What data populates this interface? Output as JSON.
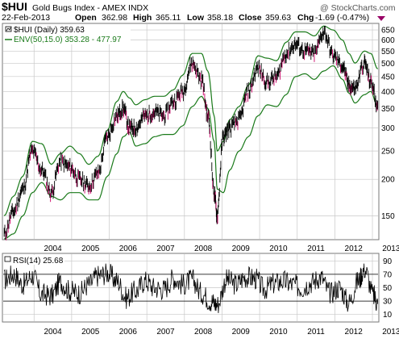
{
  "header": {
    "symbol": "$HUI",
    "name": "Gold Bugs Index - AMEX  INDX",
    "date": "22-Feb-2013",
    "open_label": "Open",
    "open": "362.98",
    "high_label": "High",
    "high": "365.11",
    "low_label": "Low",
    "low": "358.18",
    "close_label": "Close",
    "close": "359.63",
    "chg_label": "Chg",
    "chg": "-1.69 (-0.47%)",
    "brand": "@ StockCharts.com"
  },
  "colors": {
    "price": "#000000",
    "down_close": "#cc0066",
    "envelope": "#1a7a1a",
    "grid": "#c8c8c8",
    "marker": "#990066"
  },
  "icons": {
    "legend_symbol": "chart-icon",
    "chg_arrow": "down-triangle-icon"
  },
  "legend": {
    "price": "$HUI (Daily) 359.63",
    "envelope": "ENV(50,15.0) 353.28 - 477.97"
  },
  "rsi_label": "RSI(14) 25.68",
  "chart_data": [
    {
      "type": "line",
      "title": "$HUI Gold Bugs Index - AMEX INDX",
      "scale": "log",
      "ylim": [
        125,
        680
      ],
      "grid": true,
      "y_ticks": [
        "150",
        "200",
        "250",
        "300",
        "350",
        "400",
        "450",
        "500",
        "550",
        "600",
        "650"
      ],
      "x_ticks": [
        "2004",
        "2005",
        "2006",
        "2007",
        "2008",
        "2009",
        "2010",
        "2011",
        "2012",
        "2013"
      ],
      "x_range": [
        "2003-03",
        "2013-02-22"
      ],
      "series": [
        {
          "name": "$HUI (Daily)",
          "x": [
            "2003-03",
            "2003-06",
            "2003-09",
            "2003-12",
            "2004-03",
            "2004-06",
            "2004-09",
            "2004-12",
            "2005-03",
            "2005-06",
            "2005-09",
            "2005-12",
            "2006-03",
            "2006-05",
            "2006-07",
            "2006-09",
            "2006-12",
            "2007-03",
            "2007-06",
            "2007-09",
            "2007-12",
            "2008-03",
            "2008-06",
            "2008-08",
            "2008-10",
            "2008-11",
            "2009-01",
            "2009-03",
            "2009-06",
            "2009-09",
            "2009-12",
            "2010-03",
            "2010-06",
            "2010-09",
            "2010-12",
            "2011-03",
            "2011-06",
            "2011-09",
            "2011-12",
            "2012-03",
            "2012-05",
            "2012-07",
            "2012-10",
            "2012-12",
            "2013-02-22"
          ],
          "values": [
            130,
            155,
            185,
            250,
            215,
            180,
            230,
            220,
            200,
            190,
            210,
            280,
            330,
            350,
            300,
            300,
            330,
            340,
            330,
            370,
            400,
            500,
            440,
            330,
            180,
            150,
            280,
            300,
            320,
            400,
            480,
            430,
            450,
            540,
            580,
            550,
            540,
            640,
            530,
            490,
            420,
            410,
            500,
            430,
            359.63
          ]
        },
        {
          "name": "ENV(50,15.0) upper",
          "x": [
            "2003-03",
            "2003-06",
            "2003-09",
            "2003-12",
            "2004-03",
            "2004-06",
            "2004-09",
            "2004-12",
            "2005-03",
            "2005-06",
            "2005-09",
            "2005-12",
            "2006-03",
            "2006-05",
            "2006-07",
            "2006-09",
            "2006-12",
            "2007-03",
            "2007-06",
            "2007-09",
            "2007-12",
            "2008-03",
            "2008-06",
            "2008-08",
            "2008-10",
            "2008-11",
            "2009-01",
            "2009-03",
            "2009-06",
            "2009-09",
            "2009-12",
            "2010-03",
            "2010-06",
            "2010-09",
            "2010-12",
            "2011-03",
            "2011-06",
            "2011-09",
            "2011-12",
            "2012-03",
            "2012-05",
            "2012-07",
            "2012-10",
            "2012-12",
            "2013-02-22"
          ],
          "values": [
            150,
            175,
            205,
            270,
            265,
            225,
            245,
            260,
            245,
            225,
            240,
            295,
            370,
            400,
            380,
            360,
            375,
            385,
            385,
            405,
            455,
            540,
            540,
            470,
            330,
            250,
            270,
            320,
            355,
            420,
            530,
            520,
            510,
            590,
            640,
            640,
            620,
            670,
            650,
            600,
            540,
            500,
            550,
            540,
            477.97
          ]
        },
        {
          "name": "ENV(50,15.0) lower",
          "x": [
            "2003-03",
            "2003-06",
            "2003-09",
            "2003-12",
            "2004-03",
            "2004-06",
            "2004-09",
            "2004-12",
            "2005-03",
            "2005-06",
            "2005-09",
            "2005-12",
            "2006-03",
            "2006-05",
            "2006-07",
            "2006-09",
            "2006-12",
            "2007-03",
            "2007-06",
            "2007-09",
            "2007-12",
            "2008-03",
            "2008-06",
            "2008-08",
            "2008-10",
            "2008-11",
            "2009-01",
            "2009-03",
            "2009-06",
            "2009-09",
            "2009-12",
            "2010-03",
            "2010-06",
            "2010-09",
            "2010-12",
            "2011-03",
            "2011-06",
            "2011-09",
            "2011-12",
            "2012-03",
            "2012-05",
            "2012-07",
            "2012-10",
            "2012-12",
            "2013-02-22"
          ],
          "values": [
            125,
            130,
            150,
            180,
            195,
            175,
            170,
            180,
            180,
            170,
            170,
            205,
            245,
            280,
            290,
            260,
            265,
            280,
            285,
            285,
            305,
            355,
            385,
            350,
            270,
            185,
            180,
            215,
            250,
            280,
            330,
            360,
            355,
            390,
            450,
            460,
            440,
            470,
            490,
            440,
            395,
            365,
            390,
            400,
            353.28
          ]
        }
      ]
    },
    {
      "type": "line",
      "title": "RSI(14)",
      "ylim": [
        0,
        100
      ],
      "grid": true,
      "y_ticks": [
        "10",
        "30",
        "50",
        "70",
        "90"
      ],
      "reference_lines": [
        30,
        70
      ],
      "x_ticks": [
        "2004",
        "2005",
        "2006",
        "2007",
        "2008",
        "2009",
        "2010",
        "2011",
        "2012",
        "2013"
      ],
      "series": [
        {
          "name": "RSI(14)",
          "x": [
            "2003-03",
            "2003-06",
            "2003-09",
            "2003-12",
            "2004-03",
            "2004-06",
            "2004-09",
            "2004-12",
            "2005-03",
            "2005-06",
            "2005-09",
            "2005-12",
            "2006-03",
            "2006-06",
            "2006-09",
            "2006-12",
            "2007-03",
            "2007-06",
            "2007-09",
            "2007-12",
            "2008-03",
            "2008-06",
            "2008-09",
            "2008-11",
            "2009-02",
            "2009-05",
            "2009-08",
            "2009-11",
            "2010-02",
            "2010-05",
            "2010-08",
            "2010-11",
            "2011-02",
            "2011-05",
            "2011-08",
            "2011-11",
            "2012-02",
            "2012-05",
            "2012-08",
            "2012-10",
            "2013-01",
            "2013-02-22"
          ],
          "values": [
            62,
            70,
            55,
            68,
            40,
            38,
            58,
            45,
            42,
            55,
            68,
            72,
            60,
            35,
            45,
            60,
            50,
            48,
            64,
            55,
            62,
            42,
            30,
            25,
            62,
            55,
            66,
            64,
            48,
            56,
            60,
            55,
            50,
            58,
            66,
            42,
            50,
            28,
            60,
            78,
            38,
            25.68
          ]
        }
      ]
    }
  ]
}
